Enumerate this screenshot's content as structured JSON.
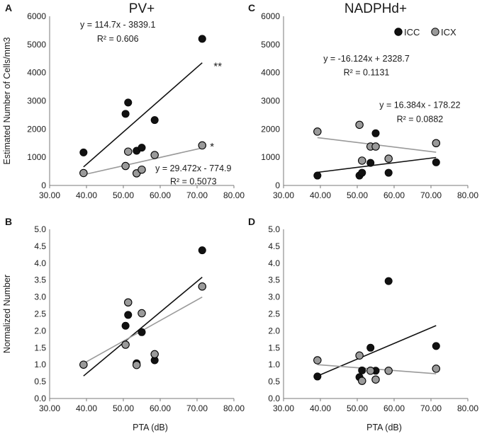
{
  "chart_data": [
    {
      "id": "A",
      "type": "scatter",
      "panel_letter": "A",
      "title": "PV+",
      "xlabel": "",
      "ylabel": "Estimated Number of Cells/mm3",
      "xlim": [
        30,
        80
      ],
      "ylim": [
        0,
        6000
      ],
      "x_ticks": [
        "30.00",
        "40.00",
        "50.00",
        "60.00",
        "70.00",
        "80.00"
      ],
      "y_ticks": [
        "0",
        "1000",
        "2000",
        "3000",
        "4000",
        "5000",
        "6000"
      ],
      "series": [
        {
          "name": "ICC",
          "color": "#111111",
          "points": [
            [
              39.2,
              1170
            ],
            [
              50.6,
              2540
            ],
            [
              51.3,
              2940
            ],
            [
              53.6,
              1230
            ],
            [
              55.0,
              1340
            ],
            [
              58.5,
              2320
            ],
            [
              71.4,
              5200
            ]
          ],
          "trend": {
            "slope": 114.7,
            "intercept": -3839.1,
            "x_range": [
              39.2,
              71.4
            ]
          }
        },
        {
          "name": "ICX",
          "color": "#9a9a9a",
          "points": [
            [
              39.2,
              440
            ],
            [
              50.6,
              690
            ],
            [
              51.3,
              1200
            ],
            [
              53.6,
              430
            ],
            [
              55.0,
              560
            ],
            [
              58.5,
              1080
            ],
            [
              71.4,
              1420
            ]
          ],
          "trend": {
            "slope": 29.472,
            "intercept": -774.9,
            "x_range": [
              39.2,
              71.4
            ]
          }
        }
      ],
      "annotations": [
        {
          "text": "y = 114.7x - 3839.1",
          "x": 48.5,
          "y": 5700,
          "anchor": "middle"
        },
        {
          "text": "R² = 0.606",
          "x": 48.5,
          "y": 5200,
          "anchor": "middle"
        },
        {
          "text": "**",
          "x": 74.5,
          "y": 4200,
          "anchor": "start"
        },
        {
          "text": "*",
          "x": 73.5,
          "y": 1350,
          "anchor": "start"
        },
        {
          "text": "y = 29.472x - 774.9",
          "x": 69.0,
          "y": 600,
          "anchor": "middle"
        },
        {
          "text": "R² = 0.5073",
          "x": 69.0,
          "y": 140,
          "anchor": "middle"
        }
      ]
    },
    {
      "id": "C",
      "type": "scatter",
      "panel_letter": "C",
      "title": "NADPHd+",
      "xlabel": "",
      "ylabel": "",
      "xlim": [
        30,
        80
      ],
      "ylim": [
        0,
        6000
      ],
      "x_ticks": [
        "30.00",
        "40.00",
        "50.00",
        "60.00",
        "70.00",
        "80.00"
      ],
      "y_ticks": [
        "0",
        "1000",
        "2000",
        "3000",
        "4000",
        "5000",
        "6000"
      ],
      "legend": {
        "position": "top-right",
        "entries": [
          {
            "label": "ICC",
            "color": "#111111"
          },
          {
            "label": "ICX",
            "color": "#9a9a9a"
          }
        ]
      },
      "series": [
        {
          "name": "ICC",
          "color": "#111111",
          "points": [
            [
              39.2,
              350
            ],
            [
              50.6,
              350
            ],
            [
              51.3,
              450
            ],
            [
              53.6,
              800
            ],
            [
              55.0,
              1850
            ],
            [
              58.5,
              450
            ],
            [
              71.4,
              820
            ]
          ],
          "trend": {
            "slope": 16.384,
            "intercept": -178.22,
            "x_range": [
              39.2,
              71.4
            ]
          }
        },
        {
          "name": "ICX",
          "color": "#9a9a9a",
          "points": [
            [
              39.2,
              1910
            ],
            [
              50.6,
              2150
            ],
            [
              51.3,
              880
            ],
            [
              53.6,
              1380
            ],
            [
              55.0,
              1380
            ],
            [
              58.5,
              950
            ],
            [
              71.4,
              1500
            ]
          ],
          "trend": {
            "slope": -16.124,
            "intercept": 2328.7,
            "x_range": [
              39.2,
              71.4
            ]
          }
        }
      ],
      "annotations": [
        {
          "text": "y = -16.124x + 2328.7",
          "x": 52.5,
          "y": 4500,
          "anchor": "middle"
        },
        {
          "text": "R² = 0.1131",
          "x": 52.5,
          "y": 4000,
          "anchor": "middle"
        },
        {
          "text": "y = 16.384x - 178.22",
          "x": 67.0,
          "y": 2850,
          "anchor": "middle"
        },
        {
          "text": "R² = 0.0882",
          "x": 67.0,
          "y": 2350,
          "anchor": "middle"
        }
      ]
    },
    {
      "id": "B",
      "type": "scatter",
      "panel_letter": "B",
      "title": "",
      "xlabel": "PTA (dB)",
      "ylabel": "Normalized Number",
      "xlim": [
        30,
        80
      ],
      "ylim": [
        0,
        5
      ],
      "x_ticks": [
        "30.00",
        "40.00",
        "50.00",
        "60.00",
        "70.00",
        "80.00"
      ],
      "y_ticks": [
        "0.0",
        "0.5",
        "1.0",
        "1.5",
        "2.0",
        "2.5",
        "3.0",
        "3.5",
        "4.0",
        "4.5",
        "5.0"
      ],
      "series": [
        {
          "name": "ICC",
          "color": "#111111",
          "points": [
            [
              39.2,
              1.0
            ],
            [
              50.6,
              2.15
            ],
            [
              51.3,
              2.47
            ],
            [
              53.6,
              1.04
            ],
            [
              55.0,
              1.96
            ],
            [
              58.5,
              1.13
            ],
            [
              71.4,
              4.38
            ]
          ],
          "trend": {
            "slope": 0.0907,
            "intercept": -2.89,
            "x_range": [
              39.2,
              71.4
            ]
          }
        },
        {
          "name": "ICX",
          "color": "#9a9a9a",
          "points": [
            [
              39.2,
              1.0
            ],
            [
              50.6,
              1.59
            ],
            [
              51.3,
              2.84
            ],
            [
              53.6,
              0.99
            ],
            [
              55.0,
              2.52
            ],
            [
              58.5,
              1.31
            ],
            [
              71.4,
              3.31
            ]
          ],
          "trend": {
            "slope": 0.0609,
            "intercept": -1.35,
            "x_range": [
              39.2,
              71.4
            ]
          }
        }
      ],
      "annotations": []
    },
    {
      "id": "D",
      "type": "scatter",
      "panel_letter": "D",
      "title": "",
      "xlabel": "PTA (dB)",
      "ylabel": "",
      "xlim": [
        30,
        80
      ],
      "ylim": [
        0,
        5
      ],
      "x_ticks": [
        "30.00",
        "40.00",
        "50.00",
        "60.00",
        "70.00",
        "80.00"
      ],
      "y_ticks": [
        "0.0",
        "0.5",
        "1.0",
        "1.5",
        "2.0",
        "2.5",
        "3.0",
        "3.5",
        "4.0",
        "4.5",
        "5.0"
      ],
      "series": [
        {
          "name": "ICC",
          "color": "#111111",
          "points": [
            [
              39.2,
              0.65
            ],
            [
              50.6,
              0.63
            ],
            [
              51.3,
              0.83
            ],
            [
              53.6,
              1.5
            ],
            [
              55.0,
              0.82
            ],
            [
              58.5,
              3.47
            ],
            [
              71.4,
              1.55
            ]
          ],
          "trend": {
            "slope": 0.0463,
            "intercept": -1.15,
            "x_range": [
              39.2,
              71.4
            ]
          }
        },
        {
          "name": "ICX",
          "color": "#9a9a9a",
          "points": [
            [
              39.2,
              1.13
            ],
            [
              50.6,
              1.27
            ],
            [
              51.3,
              0.52
            ],
            [
              53.6,
              0.82
            ],
            [
              55.0,
              0.56
            ],
            [
              58.5,
              0.82
            ],
            [
              71.4,
              0.88
            ]
          ],
          "trend": {
            "slope": -0.0084,
            "intercept": 1.33,
            "x_range": [
              39.2,
              71.4
            ]
          }
        }
      ],
      "annotations": []
    }
  ]
}
